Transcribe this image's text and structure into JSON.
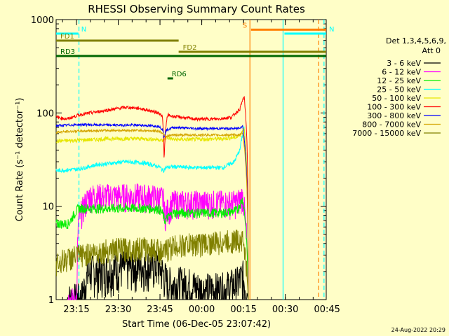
{
  "chart_data": {
    "type": "line",
    "title": "RHESSI Observing Summary Count Rates",
    "xlabel": "Start Time (06-Dec-05 23:07:42)",
    "ylabel": "Count Rate (s⁻¹ detector⁻¹)",
    "yscale": "log",
    "ylim": [
      1,
      1000
    ],
    "xlim_minutes": [
      0,
      97
    ],
    "x_ticks": [
      {
        "label": "23:15",
        "minute": 7.3
      },
      {
        "label": "23:30",
        "minute": 22.3
      },
      {
        "label": "23:45",
        "minute": 37.3
      },
      {
        "label": "00:00",
        "minute": 52.3
      },
      {
        "label": "00:15",
        "minute": 67.3
      },
      {
        "label": "00:30",
        "minute": 82.3
      },
      {
        "label": "00:45",
        "minute": 97.3
      }
    ],
    "y_ticks": [
      {
        "label": "1",
        "value": 1
      },
      {
        "label": "10",
        "value": 10
      },
      {
        "label": "100",
        "value": 100
      },
      {
        "label": "1000",
        "value": 1000
      }
    ],
    "legend_header": [
      "Det 1,3,4,5,6,9,",
      "Att 0"
    ],
    "legend_position": "right",
    "series": [
      {
        "name": "3 - 6 keV",
        "color": "#000000",
        "x_min": [
          4,
          9,
          12,
          17,
          22,
          30,
          37,
          40,
          47,
          52,
          60,
          65,
          67,
          69
        ],
        "y": [
          1,
          1,
          2,
          2,
          2.2,
          2.3,
          2.3,
          1.5,
          1.5,
          1.3,
          1.3,
          1.5,
          1.8,
          1
        ]
      },
      {
        "name": "6 - 12 keV",
        "color": "#ff00ff",
        "x_min": [
          4,
          7.5,
          8,
          12,
          20,
          30,
          37,
          38.5,
          39,
          42,
          50,
          60,
          65,
          67,
          69
        ],
        "y": [
          1,
          1,
          7,
          13,
          13,
          13,
          12.5,
          12,
          8,
          11,
          11,
          11,
          11,
          13,
          1
        ]
      },
      {
        "name": "12 - 25 keV",
        "color": "#00ee00",
        "x_min": [
          0,
          4.5,
          8,
          12,
          20,
          30,
          37,
          38.5,
          39,
          42,
          50,
          60,
          65,
          67,
          69
        ],
        "y": [
          6.5,
          6.5,
          9.5,
          9.5,
          9.5,
          9.6,
          9.4,
          8,
          7,
          8.5,
          8.5,
          8.5,
          9,
          12,
          1
        ]
      },
      {
        "name": "25 - 50 keV",
        "color": "#00ffff",
        "x_min": [
          0,
          8,
          15,
          25,
          32,
          37,
          38.5,
          39.5,
          42,
          50,
          60,
          64,
          66,
          67.5,
          69
        ],
        "y": [
          24,
          25,
          28,
          30,
          29,
          26.5,
          24,
          26,
          26.5,
          26,
          26,
          30,
          40,
          70,
          1
        ]
      },
      {
        "name": "50 - 100 keV",
        "color": "#e6e600",
        "x_min": [
          0,
          8,
          20,
          30,
          37,
          38.5,
          39.5,
          42,
          50,
          60,
          65,
          66.5,
          67.5,
          69
        ],
        "y": [
          50,
          51,
          53,
          53,
          52,
          50,
          55,
          52,
          52,
          53,
          55,
          60,
          70,
          1
        ]
      },
      {
        "name": "100 - 300 keV",
        "color": "#ff0000",
        "x_min": [
          0,
          4,
          8,
          15,
          25,
          30,
          37,
          38.2,
          38.8,
          39.2,
          40,
          42,
          50,
          58,
          63,
          66,
          67.5,
          69
        ],
        "y": [
          90,
          86,
          95,
          103,
          115,
          112,
          100,
          90,
          30,
          60,
          95,
          92,
          86,
          86,
          90,
          110,
          150,
          1
        ]
      },
      {
        "name": "300 - 800 keV",
        "color": "#0000ff",
        "x_min": [
          0,
          8,
          20,
          30,
          37,
          38.3,
          38.7,
          39.5,
          42,
          50,
          60,
          65,
          67,
          69
        ],
        "y": [
          73,
          75,
          74,
          74,
          72,
          66,
          55,
          65,
          70,
          68,
          68,
          68,
          72,
          1
        ]
      },
      {
        "name": "800 - 7000 keV",
        "color": "#d4a500",
        "x_min": [
          0,
          8,
          20,
          30,
          37,
          38.5,
          39.5,
          42,
          50,
          60,
          65,
          67,
          69
        ],
        "y": [
          62,
          64,
          65,
          65,
          64,
          60,
          56,
          58,
          58,
          58,
          58,
          60,
          1
        ]
      },
      {
        "name": "7000 - 15000 keV",
        "color": "#808000",
        "x_min": [
          0,
          8,
          20,
          30,
          37,
          38.5,
          39.5,
          42,
          50,
          60,
          65,
          67,
          69
        ],
        "y": [
          2.5,
          3,
          3.5,
          3.6,
          3.5,
          3,
          3.5,
          3.8,
          4,
          4.2,
          4.4,
          4.5,
          1
        ]
      }
    ],
    "flag_bars": [
      {
        "label": "N",
        "color": "#00ffff",
        "y_frac": 0.05,
        "x0": 0,
        "x1": 8
      },
      {
        "label": "N",
        "color": "#00ffff",
        "y_frac": 0.05,
        "x0": 82,
        "x1": 97
      },
      {
        "label": "FD1",
        "color": "#808000",
        "y_frac": 0.075,
        "x0": 0,
        "x1": 44
      },
      {
        "label": "FD2",
        "color": "#808000",
        "y_frac": 0.115,
        "x0": 44,
        "x1": 97
      },
      {
        "label": "RD3",
        "color": "#006600",
        "y_frac": 0.13,
        "x0": 0,
        "x1": 97
      },
      {
        "label": "RD6",
        "color": "#006600",
        "y_frac": 0.21,
        "x0": 40,
        "x1": 42
      },
      {
        "label": "S",
        "color": "#ff7f00",
        "y_frac": 0.036,
        "x0": 70,
        "x1": 97
      }
    ],
    "vertical_markers": [
      {
        "minute": 8.2,
        "color": "#00ffff",
        "style": "dashed"
      },
      {
        "minute": 69.6,
        "color": "#ff7f00",
        "style": "solid"
      },
      {
        "minute": 81.5,
        "color": "#00ffff",
        "style": "solid"
      },
      {
        "minute": 94.3,
        "color": "#ff7f00",
        "style": "dashed"
      },
      {
        "minute": 96.2,
        "color": "#00ffff",
        "style": "dashed"
      }
    ],
    "footer_date": "24-Aug-2022 20:29"
  }
}
